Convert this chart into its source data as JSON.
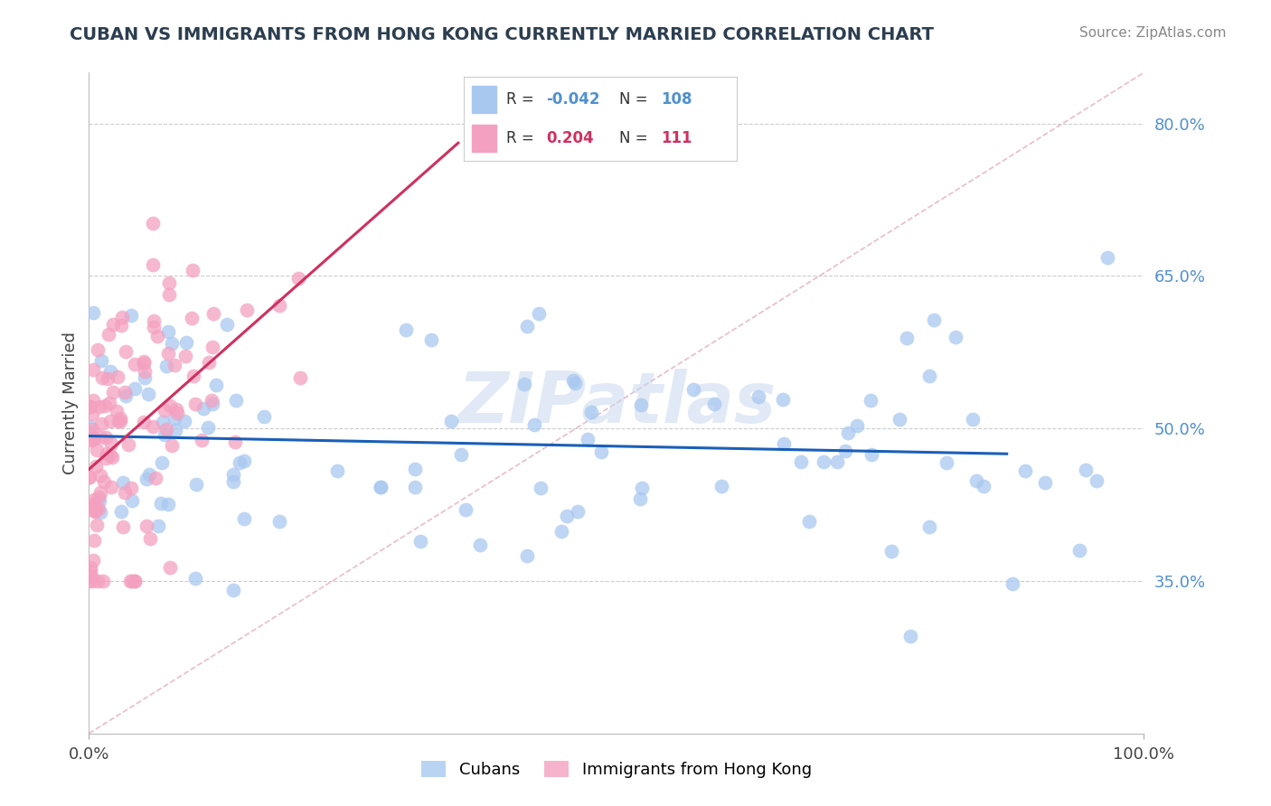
{
  "title": "CUBAN VS IMMIGRANTS FROM HONG KONG CURRENTLY MARRIED CORRELATION CHART",
  "source": "Source: ZipAtlas.com",
  "ylabel": "Currently Married",
  "legend_label1": "Cubans",
  "legend_label2": "Immigrants from Hong Kong",
  "r1": -0.042,
  "n1": 108,
  "r2": 0.204,
  "n2": 111,
  "color1": "#A8C8F0",
  "color2": "#F4A0C0",
  "line_color1": "#1A5FB8",
  "line_color2": "#D03060",
  "diagonal_color": "#E8B0C0",
  "xlim": [
    0.0,
    1.0
  ],
  "ylim": [
    0.2,
    0.85
  ],
  "yticks": [
    0.35,
    0.5,
    0.65,
    0.8
  ],
  "ytick_labels": [
    "35.0%",
    "50.0%",
    "65.0%",
    "80.0%"
  ],
  "xtick_labels": [
    "0.0%",
    "100.0%"
  ],
  "background_color": "#FFFFFF",
  "grid_color": "#CCCCCC",
  "title_color": "#2C3E50",
  "source_color": "#888888",
  "watermark_color": "#C8D8EE",
  "ytick_color": "#5090D0"
}
